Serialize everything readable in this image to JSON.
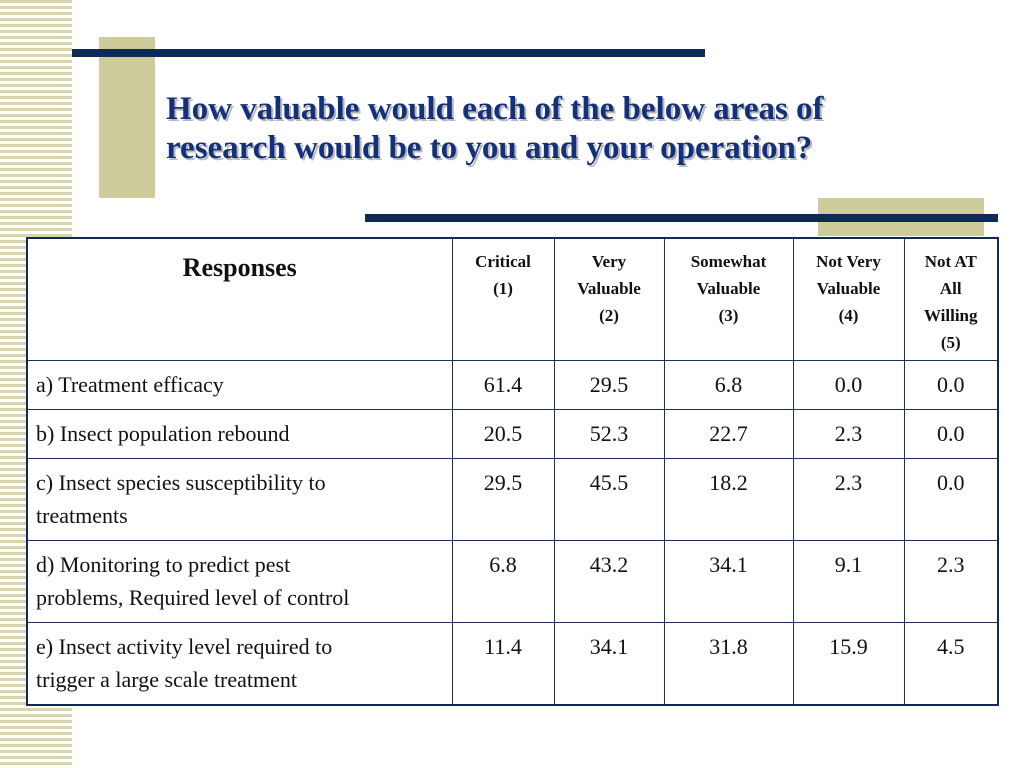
{
  "slide": {
    "title_lines": [
      "How valuable would each of the below areas of",
      "research would be to you and your operation?"
    ],
    "colors": {
      "title": "#13317a",
      "navy_bar": "#0f2a55",
      "tan_accent": "#cfcc9c"
    }
  },
  "table": {
    "header": {
      "responses": "Responses",
      "columns": [
        [
          "Critical",
          "(1)"
        ],
        [
          "Very",
          "Valuable",
          "(2)"
        ],
        [
          "Somewhat",
          "Valuable",
          "(3)"
        ],
        [
          "Not Very",
          "Valuable",
          "(4)"
        ],
        [
          "Not AT",
          "All",
          "Willing",
          "(5)"
        ]
      ]
    },
    "rows": [
      {
        "label_lines": [
          "a) Treatment efficacy"
        ],
        "values": [
          "61.4",
          "29.5",
          "6.8",
          "0.0",
          "0.0"
        ]
      },
      {
        "label_lines": [
          "b) Insect population rebound"
        ],
        "values": [
          "20.5",
          "52.3",
          "22.7",
          "2.3",
          "0.0"
        ]
      },
      {
        "label_lines": [
          "c) Insect species susceptibility to",
          "treatments"
        ],
        "values": [
          "29.5",
          "45.5",
          "18.2",
          "2.3",
          "0.0"
        ]
      },
      {
        "label_lines": [
          "d) Monitoring to predict pest",
          "problems, Required level of control"
        ],
        "values": [
          "6.8",
          "43.2",
          "34.1",
          "9.1",
          "2.3"
        ]
      },
      {
        "label_lines": [
          "e) Insect activity level required to",
          "trigger a large scale treatment"
        ],
        "values": [
          "11.4",
          "34.1",
          "31.8",
          "15.9",
          "4.5"
        ]
      }
    ]
  }
}
